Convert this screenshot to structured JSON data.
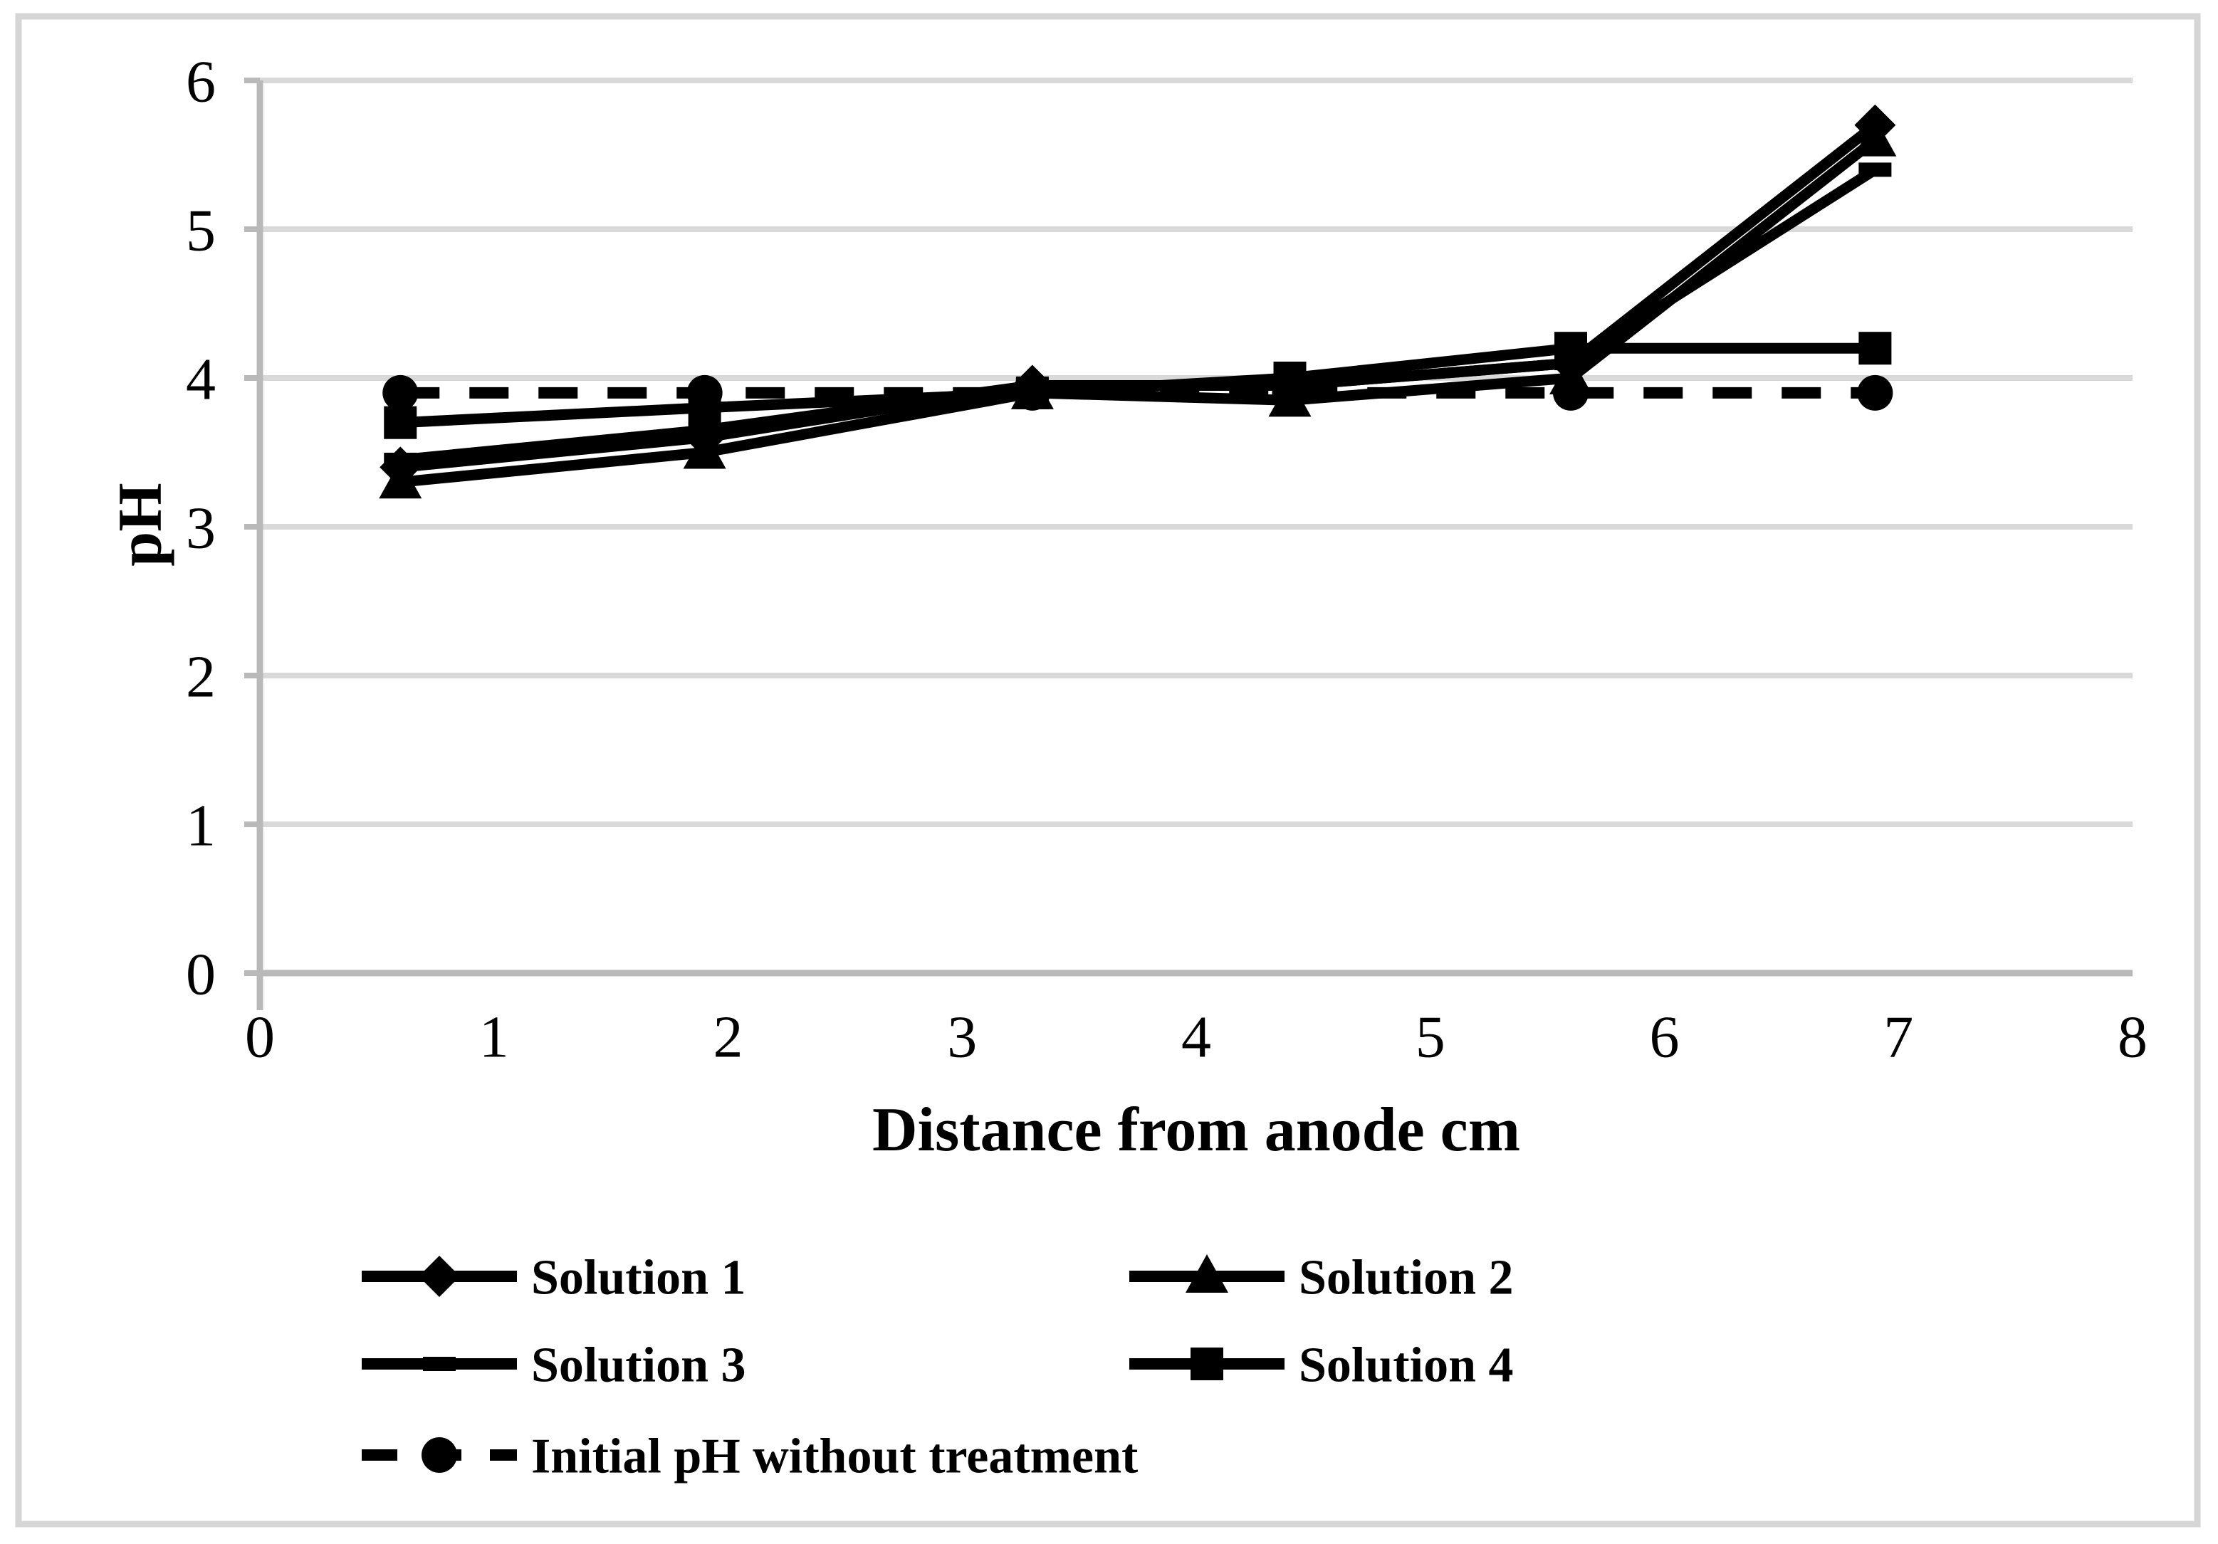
{
  "colors": {
    "background": "#ffffff",
    "border": "#d6d6d6",
    "grid": "#d9d9d9",
    "axis": "#b9b9b9",
    "series": "#000000",
    "text": "#000000"
  },
  "chart_data": {
    "type": "line",
    "title": "",
    "xlabel": "Distance from anode cm",
    "ylabel": "pH",
    "xlim": [
      0,
      8
    ],
    "ylim": [
      0,
      6
    ],
    "x_ticks": [
      0,
      1,
      2,
      3,
      4,
      5,
      6,
      7,
      8
    ],
    "y_ticks": [
      0,
      1,
      2,
      3,
      4,
      5,
      6
    ],
    "grid": "horizontal gridlines at each pH integer",
    "legend_position": "below chart, two columns, bottom-left",
    "x": [
      0.6,
      1.9,
      3.3,
      4.4,
      5.6,
      6.9
    ],
    "series": [
      {
        "name": "Solution 1",
        "marker": "diamond",
        "line": "solid",
        "values": [
          3.4,
          3.6,
          3.95,
          3.95,
          4.1,
          5.7
        ]
      },
      {
        "name": "Solution 2",
        "marker": "triangle",
        "line": "solid",
        "values": [
          3.3,
          3.5,
          3.9,
          3.85,
          4.0,
          5.6
        ]
      },
      {
        "name": "Solution 3",
        "marker": "dash",
        "line": "solid",
        "values": [
          3.45,
          3.65,
          3.95,
          3.95,
          4.1,
          5.4
        ]
      },
      {
        "name": "Solution 4",
        "marker": "square",
        "line": "solid",
        "values": [
          3.7,
          3.8,
          3.9,
          4.0,
          4.2,
          4.2
        ]
      },
      {
        "name": "Initial pH without treatment",
        "marker": "circle",
        "line": "dashed",
        "values": [
          3.9,
          3.9,
          3.9,
          3.9,
          3.9,
          3.9
        ]
      }
    ]
  }
}
